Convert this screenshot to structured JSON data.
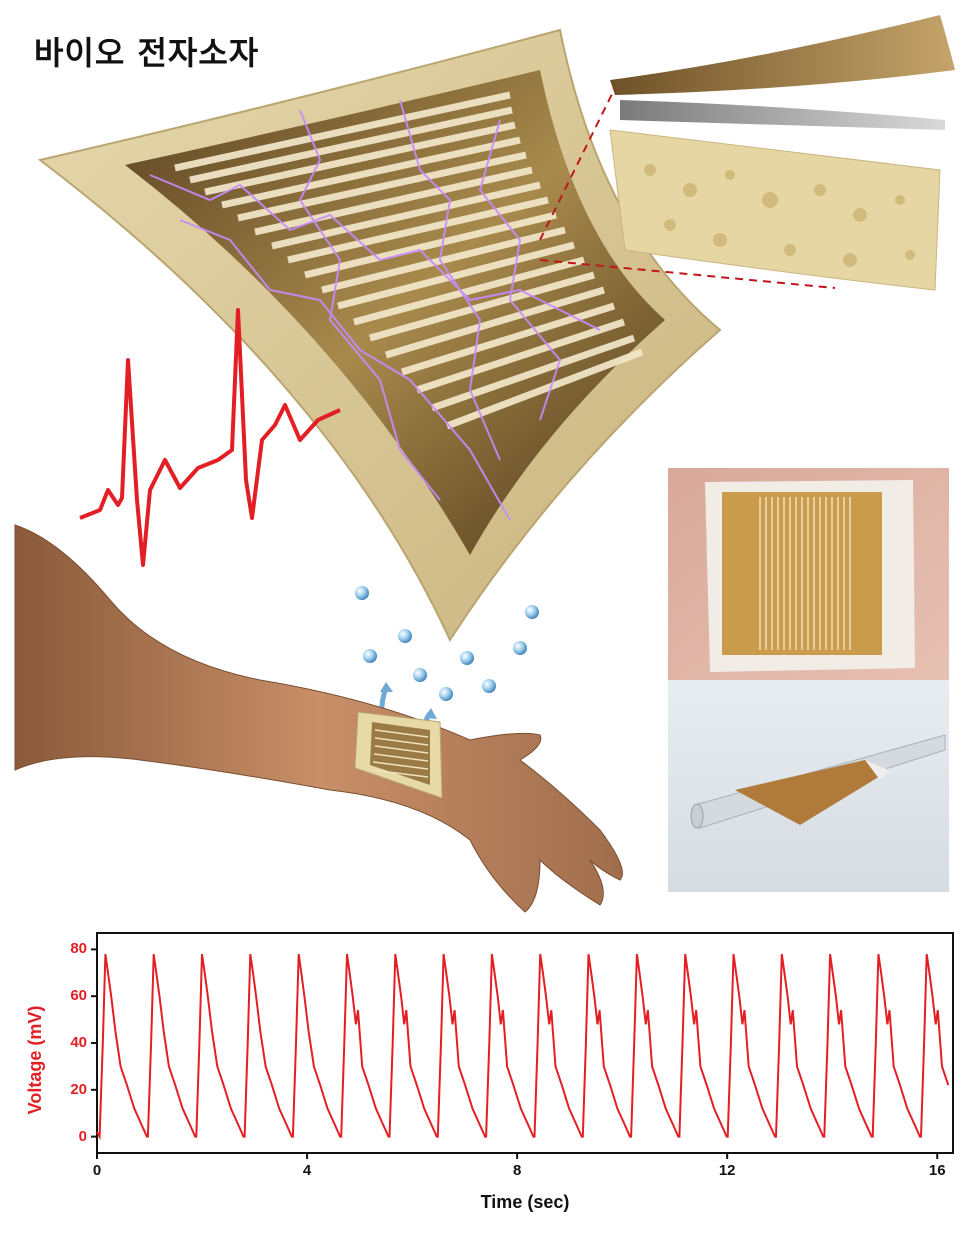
{
  "title": "바이오 전자소자",
  "colors": {
    "trace": "#e31e24",
    "device_frame": "#dccb9c",
    "device_inner": "#8a6a34",
    "electrode": "#f2e6c8",
    "spark": "#c78bff"
  },
  "illustration": {
    "icons": [
      "ecg-waveform-icon",
      "sweat-droplet-icon",
      "arm-illustration",
      "patch-on-wrist",
      "layer-stack-illustration",
      "photo-patch-on-skin",
      "photo-patch-on-rod"
    ]
  },
  "chart_data": {
    "type": "line",
    "xlabel": "Time (sec)",
    "ylabel": "Voltage (mV)",
    "xlim": [
      0,
      16.3
    ],
    "ylim": [
      -7,
      87
    ],
    "xticks": [
      0,
      4,
      8,
      12,
      16
    ],
    "yticks": [
      0,
      20,
      40,
      60,
      80
    ],
    "grid": false,
    "series": [
      {
        "beats_start": [
          0.05,
          0.97,
          1.89,
          2.81,
          3.73,
          4.65,
          5.57,
          6.49,
          7.41,
          8.33,
          9.25,
          10.17,
          11.09,
          12.01,
          12.93,
          13.85,
          14.77,
          15.69
        ],
        "peak": 78,
        "trough": 0
      }
    ]
  }
}
